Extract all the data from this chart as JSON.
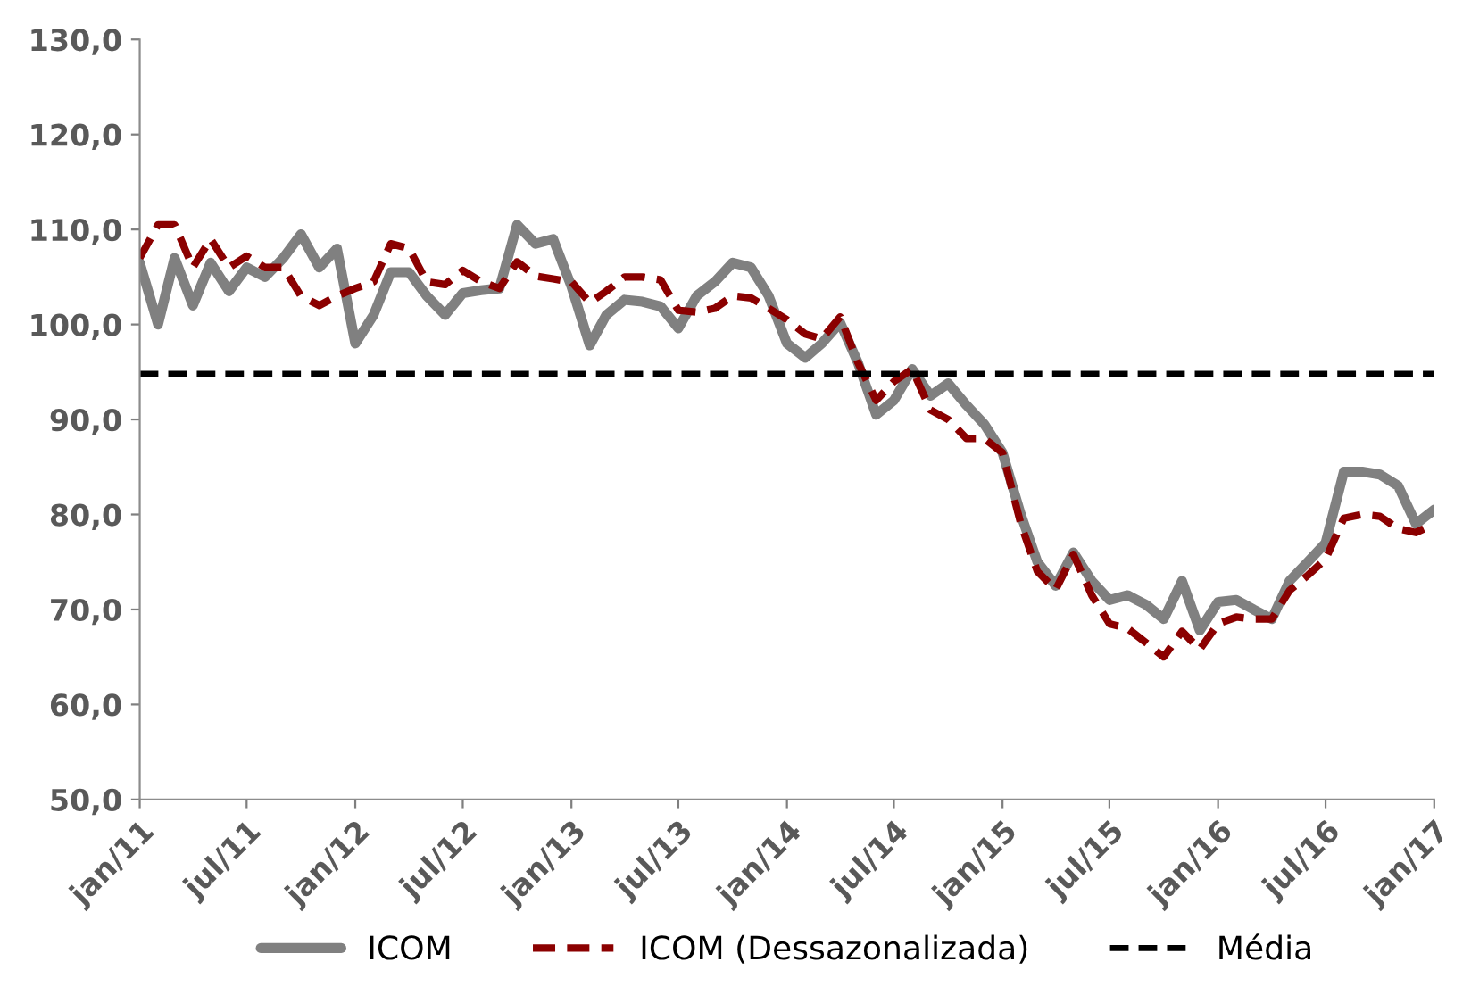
{
  "chart_data": {
    "type": "line",
    "x": [
      "2011-01",
      "2011-02",
      "2011-03",
      "2011-04",
      "2011-05",
      "2011-06",
      "2011-07",
      "2011-08",
      "2011-09",
      "2011-10",
      "2011-11",
      "2011-12",
      "2012-01",
      "2012-02",
      "2012-03",
      "2012-04",
      "2012-05",
      "2012-06",
      "2012-07",
      "2012-08",
      "2012-09",
      "2012-10",
      "2012-11",
      "2012-12",
      "2013-01",
      "2013-02",
      "2013-03",
      "2013-04",
      "2013-05",
      "2013-06",
      "2013-07",
      "2013-08",
      "2013-09",
      "2013-10",
      "2013-11",
      "2013-12",
      "2014-01",
      "2014-02",
      "2014-03",
      "2014-04",
      "2014-05",
      "2014-06",
      "2014-07",
      "2014-08",
      "2014-09",
      "2014-10",
      "2014-11",
      "2014-12",
      "2015-01",
      "2015-02",
      "2015-03",
      "2015-04",
      "2015-05",
      "2015-06",
      "2015-07",
      "2015-08",
      "2015-09",
      "2015-10",
      "2015-11",
      "2015-12",
      "2016-01",
      "2016-02",
      "2016-03",
      "2016-04",
      "2016-05",
      "2016-06",
      "2016-07",
      "2016-08",
      "2016-09",
      "2016-10",
      "2016-11",
      "2016-12",
      "2017-01"
    ],
    "series": [
      {
        "name": "ICOM",
        "color": "#808080",
        "line_style": "solid",
        "values": [
          106.5,
          100,
          107,
          102,
          106.5,
          103.5,
          106,
          105,
          107,
          109.5,
          106,
          108,
          98,
          101,
          105.5,
          105.5,
          103,
          101,
          103.3,
          103.6,
          103.8,
          110.5,
          108.5,
          109,
          104,
          97.8,
          101,
          102.6,
          102.4,
          101.9,
          99.6,
          103,
          104.5,
          106.5,
          106,
          103,
          98,
          96.5,
          98,
          100.2,
          96,
          90.5,
          92,
          95.3,
          92.5,
          93.8,
          91.5,
          89.5,
          86.5,
          80,
          75,
          72.5,
          76,
          73,
          71,
          71.5,
          70.5,
          69,
          73,
          67.8,
          70.8,
          71,
          70,
          69,
          73,
          75,
          77,
          84.5,
          84.5,
          84.2,
          83,
          79,
          80.5
        ]
      },
      {
        "name": "ICOM (Dessazonalizada)",
        "color": "#8b0000",
        "line_style": "dashed",
        "values": [
          107,
          110.5,
          110.5,
          106,
          109,
          106,
          107.2,
          106,
          106,
          103,
          102,
          103,
          103.8,
          104.5,
          108.5,
          108,
          104.5,
          104.2,
          105.7,
          104.5,
          103.8,
          106.6,
          105.1,
          104.8,
          104.5,
          102.3,
          103.5,
          105,
          105,
          104.7,
          101.5,
          101.3,
          101.7,
          103,
          102.8,
          101.7,
          100.5,
          99,
          98.5,
          100.8,
          96,
          92,
          94,
          95.3,
          91,
          90,
          88,
          88,
          86.5,
          79,
          74,
          72.1,
          75.8,
          71.5,
          68.5,
          68,
          66.5,
          65,
          67.7,
          65.8,
          68.5,
          69.2,
          69,
          69,
          72,
          73.6,
          75.3,
          79.6,
          80,
          79.8,
          78.5,
          78.1,
          79
        ]
      }
    ],
    "ref_lines": [
      {
        "axis": "y",
        "value": 94.8,
        "label": "Média",
        "color": "#000000",
        "line_style": "dashed"
      }
    ],
    "xlim": [
      "2011-01",
      "2017-01"
    ],
    "xticks": [
      {
        "value": "2011-01",
        "label": "jan/11"
      },
      {
        "value": "2011-07",
        "label": "jul/11"
      },
      {
        "value": "2012-01",
        "label": "jan/12"
      },
      {
        "value": "2012-07",
        "label": "jul/12"
      },
      {
        "value": "2013-01",
        "label": "jan/13"
      },
      {
        "value": "2013-07",
        "label": "jul/13"
      },
      {
        "value": "2014-01",
        "label": "jan/14"
      },
      {
        "value": "2014-07",
        "label": "jul/14"
      },
      {
        "value": "2015-01",
        "label": "jan/15"
      },
      {
        "value": "2015-07",
        "label": "jul/15"
      },
      {
        "value": "2016-01",
        "label": "jan/16"
      },
      {
        "value": "2016-07",
        "label": "jul/16"
      },
      {
        "value": "2017-01",
        "label": "jan/17"
      }
    ],
    "ylim": [
      50,
      130
    ],
    "yticks": [
      {
        "value": 50,
        "label": "50,0"
      },
      {
        "value": 60,
        "label": "60,0"
      },
      {
        "value": 70,
        "label": "70,0"
      },
      {
        "value": 80,
        "label": "80,0"
      },
      {
        "value": 90,
        "label": "90,0"
      },
      {
        "value": 100,
        "label": "100,0"
      },
      {
        "value": 110,
        "label": "110,0"
      },
      {
        "value": 120,
        "label": "120,0"
      },
      {
        "value": 130,
        "label": "130,0"
      }
    ],
    "grid": false,
    "legend": "bottom",
    "marker": "none"
  }
}
